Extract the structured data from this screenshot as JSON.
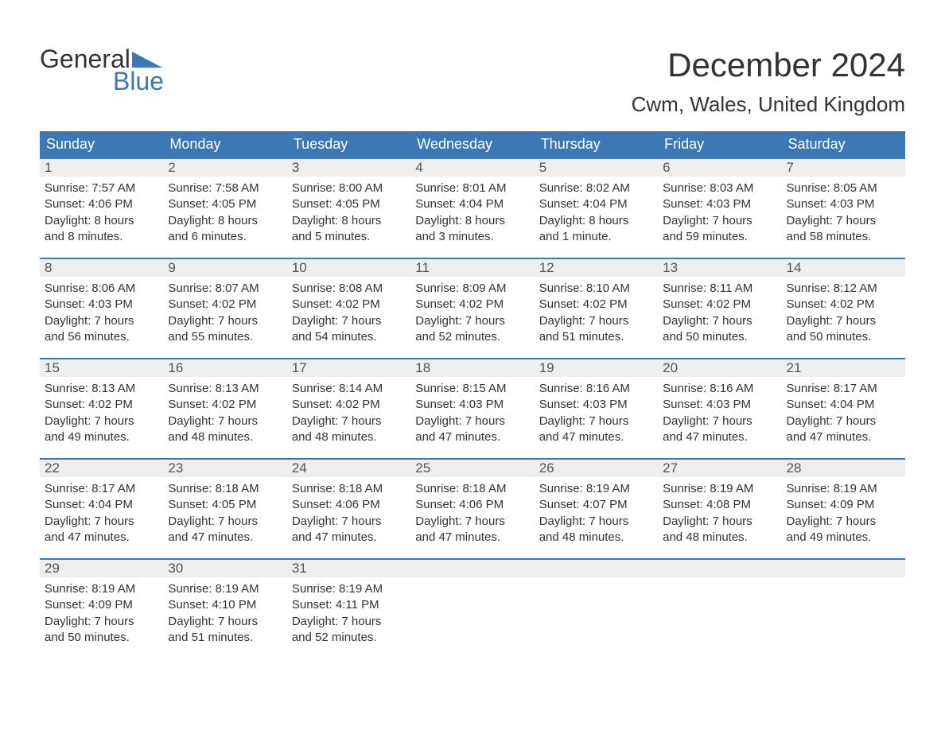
{
  "logo": {
    "top": "General",
    "bottom": "Blue",
    "tri_color": "#3b78b5"
  },
  "title": "December 2024",
  "location": "Cwm, Wales, United Kingdom",
  "colors": {
    "header_bg": "#3b78b5",
    "header_text": "#ffffff",
    "daynum_bg": "#eeeeee",
    "daynum_text": "#555555",
    "body_text": "#333333",
    "week_border": "#3b78b5",
    "page_bg": "#ffffff"
  },
  "fonts": {
    "month_title_pt": 42,
    "location_pt": 26,
    "day_header_pt": 18,
    "daynum_pt": 17,
    "cell_body_pt": 15
  },
  "day_headers": [
    "Sunday",
    "Monday",
    "Tuesday",
    "Wednesday",
    "Thursday",
    "Friday",
    "Saturday"
  ],
  "weeks": [
    [
      {
        "day": "1",
        "sunrise": "Sunrise: 7:57 AM",
        "sunset": "Sunset: 4:06 PM",
        "daylight1": "Daylight: 8 hours",
        "daylight2": "and 8 minutes."
      },
      {
        "day": "2",
        "sunrise": "Sunrise: 7:58 AM",
        "sunset": "Sunset: 4:05 PM",
        "daylight1": "Daylight: 8 hours",
        "daylight2": "and 6 minutes."
      },
      {
        "day": "3",
        "sunrise": "Sunrise: 8:00 AM",
        "sunset": "Sunset: 4:05 PM",
        "daylight1": "Daylight: 8 hours",
        "daylight2": "and 5 minutes."
      },
      {
        "day": "4",
        "sunrise": "Sunrise: 8:01 AM",
        "sunset": "Sunset: 4:04 PM",
        "daylight1": "Daylight: 8 hours",
        "daylight2": "and 3 minutes."
      },
      {
        "day": "5",
        "sunrise": "Sunrise: 8:02 AM",
        "sunset": "Sunset: 4:04 PM",
        "daylight1": "Daylight: 8 hours",
        "daylight2": "and 1 minute."
      },
      {
        "day": "6",
        "sunrise": "Sunrise: 8:03 AM",
        "sunset": "Sunset: 4:03 PM",
        "daylight1": "Daylight: 7 hours",
        "daylight2": "and 59 minutes."
      },
      {
        "day": "7",
        "sunrise": "Sunrise: 8:05 AM",
        "sunset": "Sunset: 4:03 PM",
        "daylight1": "Daylight: 7 hours",
        "daylight2": "and 58 minutes."
      }
    ],
    [
      {
        "day": "8",
        "sunrise": "Sunrise: 8:06 AM",
        "sunset": "Sunset: 4:03 PM",
        "daylight1": "Daylight: 7 hours",
        "daylight2": "and 56 minutes."
      },
      {
        "day": "9",
        "sunrise": "Sunrise: 8:07 AM",
        "sunset": "Sunset: 4:02 PM",
        "daylight1": "Daylight: 7 hours",
        "daylight2": "and 55 minutes."
      },
      {
        "day": "10",
        "sunrise": "Sunrise: 8:08 AM",
        "sunset": "Sunset: 4:02 PM",
        "daylight1": "Daylight: 7 hours",
        "daylight2": "and 54 minutes."
      },
      {
        "day": "11",
        "sunrise": "Sunrise: 8:09 AM",
        "sunset": "Sunset: 4:02 PM",
        "daylight1": "Daylight: 7 hours",
        "daylight2": "and 52 minutes."
      },
      {
        "day": "12",
        "sunrise": "Sunrise: 8:10 AM",
        "sunset": "Sunset: 4:02 PM",
        "daylight1": "Daylight: 7 hours",
        "daylight2": "and 51 minutes."
      },
      {
        "day": "13",
        "sunrise": "Sunrise: 8:11 AM",
        "sunset": "Sunset: 4:02 PM",
        "daylight1": "Daylight: 7 hours",
        "daylight2": "and 50 minutes."
      },
      {
        "day": "14",
        "sunrise": "Sunrise: 8:12 AM",
        "sunset": "Sunset: 4:02 PM",
        "daylight1": "Daylight: 7 hours",
        "daylight2": "and 50 minutes."
      }
    ],
    [
      {
        "day": "15",
        "sunrise": "Sunrise: 8:13 AM",
        "sunset": "Sunset: 4:02 PM",
        "daylight1": "Daylight: 7 hours",
        "daylight2": "and 49 minutes."
      },
      {
        "day": "16",
        "sunrise": "Sunrise: 8:13 AM",
        "sunset": "Sunset: 4:02 PM",
        "daylight1": "Daylight: 7 hours",
        "daylight2": "and 48 minutes."
      },
      {
        "day": "17",
        "sunrise": "Sunrise: 8:14 AM",
        "sunset": "Sunset: 4:02 PM",
        "daylight1": "Daylight: 7 hours",
        "daylight2": "and 48 minutes."
      },
      {
        "day": "18",
        "sunrise": "Sunrise: 8:15 AM",
        "sunset": "Sunset: 4:03 PM",
        "daylight1": "Daylight: 7 hours",
        "daylight2": "and 47 minutes."
      },
      {
        "day": "19",
        "sunrise": "Sunrise: 8:16 AM",
        "sunset": "Sunset: 4:03 PM",
        "daylight1": "Daylight: 7 hours",
        "daylight2": "and 47 minutes."
      },
      {
        "day": "20",
        "sunrise": "Sunrise: 8:16 AM",
        "sunset": "Sunset: 4:03 PM",
        "daylight1": "Daylight: 7 hours",
        "daylight2": "and 47 minutes."
      },
      {
        "day": "21",
        "sunrise": "Sunrise: 8:17 AM",
        "sunset": "Sunset: 4:04 PM",
        "daylight1": "Daylight: 7 hours",
        "daylight2": "and 47 minutes."
      }
    ],
    [
      {
        "day": "22",
        "sunrise": "Sunrise: 8:17 AM",
        "sunset": "Sunset: 4:04 PM",
        "daylight1": "Daylight: 7 hours",
        "daylight2": "and 47 minutes."
      },
      {
        "day": "23",
        "sunrise": "Sunrise: 8:18 AM",
        "sunset": "Sunset: 4:05 PM",
        "daylight1": "Daylight: 7 hours",
        "daylight2": "and 47 minutes."
      },
      {
        "day": "24",
        "sunrise": "Sunrise: 8:18 AM",
        "sunset": "Sunset: 4:06 PM",
        "daylight1": "Daylight: 7 hours",
        "daylight2": "and 47 minutes."
      },
      {
        "day": "25",
        "sunrise": "Sunrise: 8:18 AM",
        "sunset": "Sunset: 4:06 PM",
        "daylight1": "Daylight: 7 hours",
        "daylight2": "and 47 minutes."
      },
      {
        "day": "26",
        "sunrise": "Sunrise: 8:19 AM",
        "sunset": "Sunset: 4:07 PM",
        "daylight1": "Daylight: 7 hours",
        "daylight2": "and 48 minutes."
      },
      {
        "day": "27",
        "sunrise": "Sunrise: 8:19 AM",
        "sunset": "Sunset: 4:08 PM",
        "daylight1": "Daylight: 7 hours",
        "daylight2": "and 48 minutes."
      },
      {
        "day": "28",
        "sunrise": "Sunrise: 8:19 AM",
        "sunset": "Sunset: 4:09 PM",
        "daylight1": "Daylight: 7 hours",
        "daylight2": "and 49 minutes."
      }
    ],
    [
      {
        "day": "29",
        "sunrise": "Sunrise: 8:19 AM",
        "sunset": "Sunset: 4:09 PM",
        "daylight1": "Daylight: 7 hours",
        "daylight2": "and 50 minutes."
      },
      {
        "day": "30",
        "sunrise": "Sunrise: 8:19 AM",
        "sunset": "Sunset: 4:10 PM",
        "daylight1": "Daylight: 7 hours",
        "daylight2": "and 51 minutes."
      },
      {
        "day": "31",
        "sunrise": "Sunrise: 8:19 AM",
        "sunset": "Sunset: 4:11 PM",
        "daylight1": "Daylight: 7 hours",
        "daylight2": "and 52 minutes."
      },
      null,
      null,
      null,
      null
    ]
  ]
}
